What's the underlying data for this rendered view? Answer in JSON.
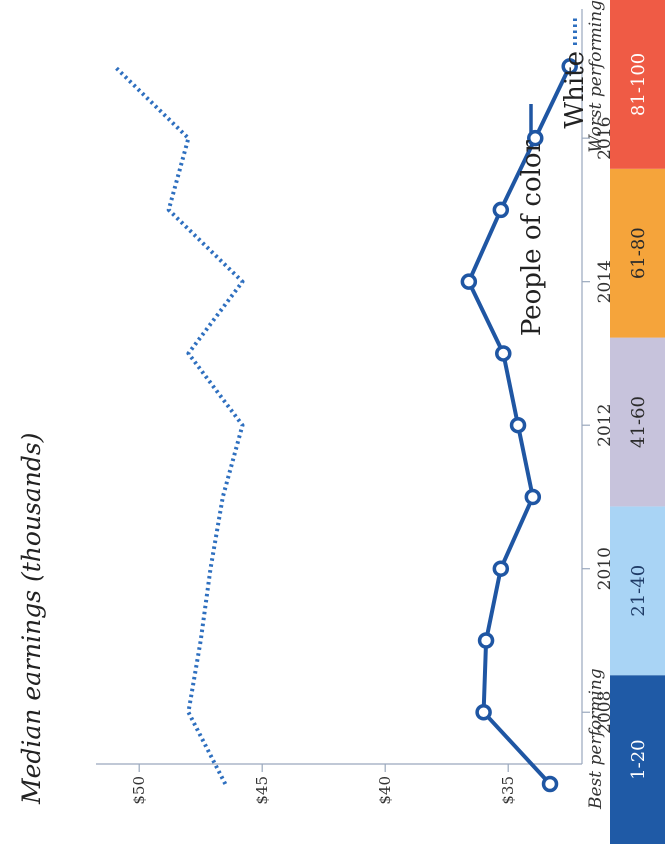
{
  "chart_data": {
    "type": "line",
    "title": "Median earnings (thousands)",
    "xlabel": "",
    "ylabel": "",
    "x": [
      2007,
      2008,
      2009,
      2010,
      2011,
      2012,
      2013,
      2014,
      2015,
      2016,
      2017
    ],
    "xlim": [
      2007,
      2017.8
    ],
    "ylim": [
      32,
      52
    ],
    "y_ticks": [
      {
        "value": 35,
        "label": "$35"
      },
      {
        "value": 40,
        "label": "$40"
      },
      {
        "value": 45,
        "label": "$45"
      },
      {
        "value": 50,
        "label": "$50"
      }
    ],
    "x_ticks": [
      {
        "value": 2008,
        "label": "2008"
      },
      {
        "value": 2010,
        "label": "2010"
      },
      {
        "value": 2012,
        "label": "2012"
      },
      {
        "value": 2014,
        "label": "2014"
      },
      {
        "value": 2016,
        "label": "2016"
      }
    ],
    "series": [
      {
        "name": "People of color",
        "style": "solid-markers",
        "color": "#1f56a3",
        "values": [
          33.3,
          36.0,
          35.9,
          35.3,
          34.0,
          34.6,
          35.2,
          36.6,
          35.3,
          33.9,
          32.5
        ]
      },
      {
        "name": "White",
        "style": "dotted",
        "color": "#2e6fbf",
        "values": [
          46.5,
          48.0,
          47.5,
          47.1,
          46.6,
          45.8,
          48.0,
          45.8,
          48.8,
          48.0,
          51.0
        ]
      }
    ],
    "legend_placement": "bottom",
    "grid": false
  },
  "scale_legend": {
    "best_label": "Best performing",
    "worst_label": "Worst performing",
    "bins": [
      {
        "label": "1-20",
        "color": "#1f5aa6",
        "text_color": "#ffffff"
      },
      {
        "label": "21-40",
        "color": "#a9d4f5",
        "text_color": "#1f3b66"
      },
      {
        "label": "41-60",
        "color": "#c7c3dc",
        "text_color": "#2b2b2b"
      },
      {
        "label": "61-80",
        "color": "#f5a43b",
        "text_color": "#2b2b2b"
      },
      {
        "label": "81-100",
        "color": "#ef5b45",
        "text_color": "#ffffff"
      }
    ]
  }
}
